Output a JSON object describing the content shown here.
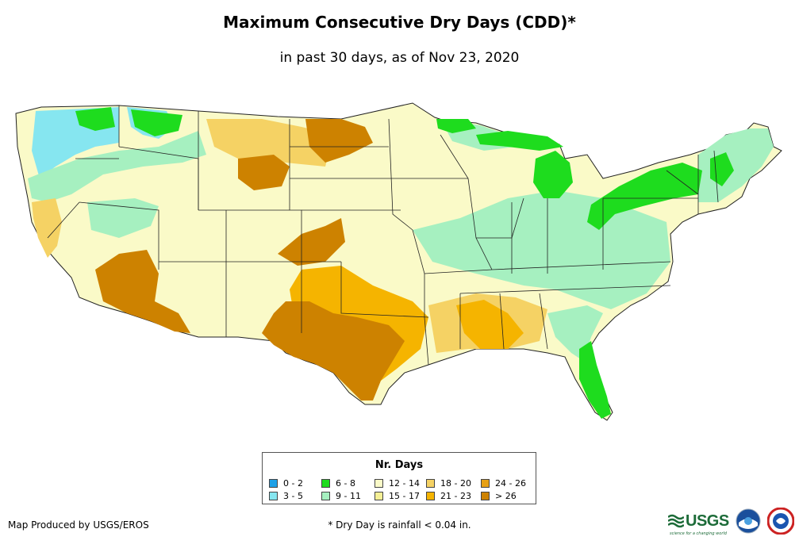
{
  "title": "Maximum Consecutive Dry Days (CDD)*",
  "subtitle": "in past 30 days, as of Nov 23, 2020",
  "legend": {
    "title": "Nr. Days",
    "items": [
      {
        "label": "0 - 2",
        "color": "#1ea0e6"
      },
      {
        "label": "3 - 5",
        "color": "#86e6f0"
      },
      {
        "label": "6 - 8",
        "color": "#1edc1e"
      },
      {
        "label": "9 - 11",
        "color": "#a6f0c0"
      },
      {
        "label": "12 - 14",
        "color": "#fafac8"
      },
      {
        "label": "15 - 17",
        "color": "#f5f096"
      },
      {
        "label": "18 - 20",
        "color": "#f5d264"
      },
      {
        "label": "21 - 23",
        "color": "#f5b400"
      },
      {
        "label": "24 - 26",
        "color": "#e6a014"
      },
      {
        "label": "> 26",
        "color": "#cd8200"
      }
    ]
  },
  "credit": "Map Produced by USGS/EROS",
  "footnote": "* Dry Day is rainfall < 0.04 in.",
  "logos": {
    "usgs_text": "USGS",
    "usgs_tagline": "science for a changing world"
  }
}
